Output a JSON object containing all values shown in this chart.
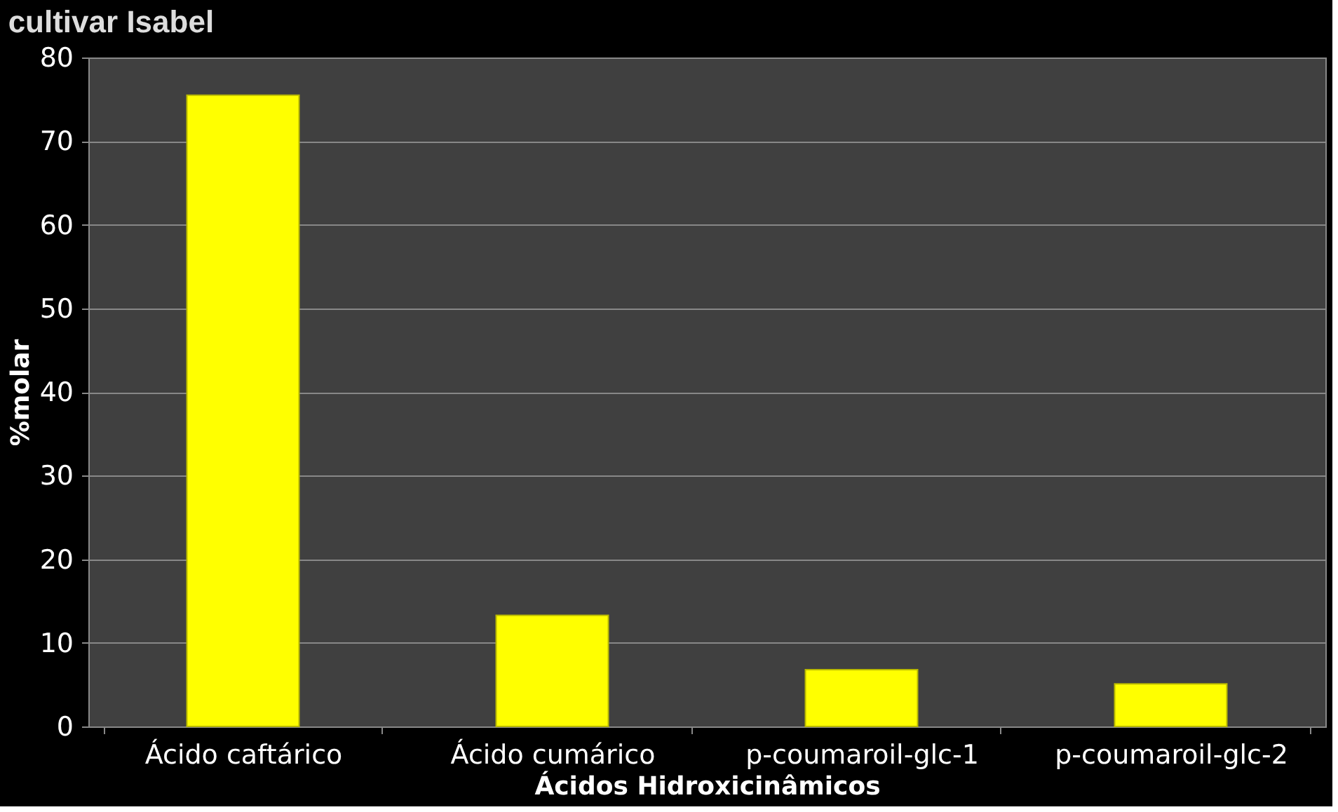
{
  "chart_data": {
    "type": "bar",
    "title": "cultivar Isabel",
    "xlabel": "Ácidos Hidroxicinâmicos",
    "ylabel": "%molar",
    "categories": [
      "Ácido caftárico",
      "Ácido cumárico",
      "p-coumaroil-glc-1",
      "p-coumaroil-glc-2"
    ],
    "values": [
      75.5,
      13.3,
      6.8,
      5.1
    ],
    "color": "#ffff00",
    "ylim": [
      0,
      80
    ],
    "yticks": [
      0,
      10,
      20,
      30,
      40,
      50,
      60,
      70,
      80
    ],
    "grid": "y"
  }
}
